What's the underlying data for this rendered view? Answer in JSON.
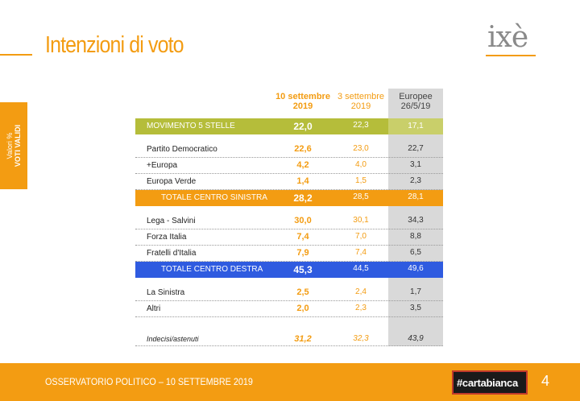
{
  "header": {
    "title": "Intenzioni di voto",
    "logo_text": "ixè"
  },
  "side_tab": {
    "line1": "Valori %",
    "line2": "VOTI VALIDI"
  },
  "table": {
    "columns": [
      {
        "label": "10 settembre\n2019"
      },
      {
        "label": "3 settembre\n2019"
      },
      {
        "label": "Europee\n26/5/19"
      }
    ],
    "rows": [
      {
        "label": "MOVIMENTO 5 STELLE",
        "v1": "22,0",
        "v2": "22,3",
        "v3": "17,1"
      },
      {
        "label": "Partito Democratico",
        "v1": "22,6",
        "v2": "23,0",
        "v3": "22,7"
      },
      {
        "label": "+Europa",
        "v1": "4,2",
        "v2": "4,0",
        "v3": "3,1"
      },
      {
        "label": "Europa Verde",
        "v1": "1,4",
        "v2": "1,5",
        "v3": "2,3"
      },
      {
        "label": "TOTALE CENTRO SINISTRA",
        "v1": "28,2",
        "v2": "28,5",
        "v3": "28,1"
      },
      {
        "label": "Lega - Salvini",
        "v1": "30,0",
        "v2": "30,1",
        "v3": "34,3"
      },
      {
        "label": "Forza Italia",
        "v1": "7,4",
        "v2": "7,0",
        "v3": "8,8"
      },
      {
        "label": "Fratelli d'Italia",
        "v1": "7,9",
        "v2": "7,4",
        "v3": "6,5"
      },
      {
        "label": "TOTALE CENTRO DESTRA",
        "v1": "45,3",
        "v2": "44,5",
        "v3": "49,6"
      },
      {
        "label": "La Sinistra",
        "v1": "2,5",
        "v2": "2,4",
        "v3": "1,7"
      },
      {
        "label": "Altri",
        "v1": "2,0",
        "v2": "2,3",
        "v3": "3,5"
      },
      {
        "label": "Indecisi/astenuti",
        "v1": "31,2",
        "v2": "32,3",
        "v3": "43,9"
      }
    ]
  },
  "footer": {
    "text": "OSSERVATORIO POLITICO – 10 SETTEMBRE 2019",
    "brand": "#cartabianca",
    "page": "4"
  },
  "colors": {
    "accent": "#f39c12",
    "m5s": "#b5bd3a",
    "centro_destra": "#2f5be0",
    "europee_column": "#d9d9d9"
  }
}
